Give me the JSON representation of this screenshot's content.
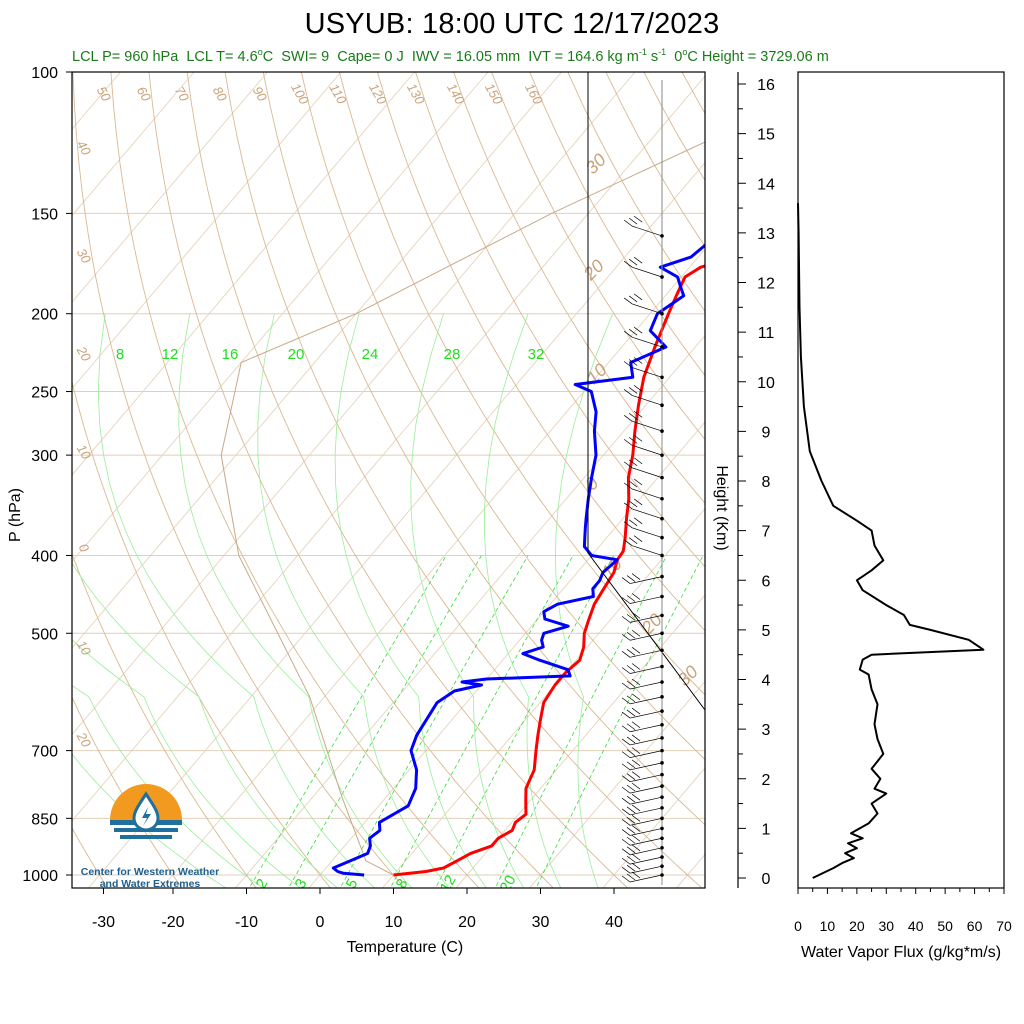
{
  "title": "USYUB: 18:00 UTC 12/17/2023",
  "subtitle": {
    "lcl_p": "LCL P= 960 hPa",
    "lcl_t_prefix": "LCL T= 4.6",
    "lcl_t_unit": "C",
    "swi": "SWI= 9",
    "cape": "Cape= 0 J",
    "iwv": "IWV = 16.05 mm",
    "ivt_prefix": "IVT = 164.6 kg m",
    "ivt_exp1": "-1",
    "ivt_mid": " s",
    "ivt_exp2": "-1",
    "zero_height_prefix": "0",
    "zero_height": "C Height = 3729.06 m"
  },
  "logo": {
    "line1": "Center for Western Weather",
    "line2": "and Water Extremes",
    "orange": "#f29a20",
    "blue": "#1f6f9f"
  },
  "colors": {
    "temperature": "#ff0000",
    "dewpoint": "#0000ff",
    "dry_adiabat": "#c9a37a",
    "mixing_ratio": "#22dd22",
    "flux": "#000000"
  },
  "chart_data": [
    {
      "type": "line",
      "name": "skew-t",
      "xlabel": "Temperature (C)",
      "ylabel": "P (hPa)",
      "xlim": [
        -34,
        52
      ],
      "x_ticks": [
        "-30",
        "-20",
        "-10",
        "0",
        "10",
        "20",
        "30",
        "40"
      ],
      "pressure_ticks": [
        "100",
        "150",
        "200",
        "250",
        "300",
        "400",
        "500",
        "700",
        "850",
        "1000"
      ],
      "y_scale": "log-pressure, reversed",
      "ylim": [
        1050,
        100
      ],
      "mixing_ratio_labels_top": [
        "8",
        "12",
        "16",
        "20",
        "24",
        "28",
        "32"
      ],
      "mixing_ratio_labels_bottom": [
        "2",
        "3",
        "5",
        "8",
        "12",
        "20"
      ],
      "dry_adiabat_labels": [
        "50",
        "60",
        "70",
        "80",
        "90",
        "100",
        "110",
        "120",
        "130",
        "140",
        "150",
        "160"
      ],
      "dry_adiabat_labels_left": [
        "40",
        "30",
        "20",
        "10",
        "0",
        "10",
        "20"
      ],
      "moist_labels_right": [
        "30",
        "20",
        "10",
        "0",
        "10",
        "20",
        "30"
      ],
      "series": [
        {
          "name": "temperature",
          "points": [
            [
              1000,
              10
            ],
            [
              995,
              12
            ],
            [
              990,
              14
            ],
            [
              980,
              16
            ],
            [
              960,
              17
            ],
            [
              940,
              18
            ],
            [
              920,
              20
            ],
            [
              900,
              20
            ],
            [
              880,
              21
            ],
            [
              860,
              20.5
            ],
            [
              840,
              21
            ],
            [
              820,
              20
            ],
            [
              800,
              19
            ],
            [
              780,
              18
            ],
            [
              760,
              17.5
            ],
            [
              740,
              17
            ],
            [
              700,
              15
            ],
            [
              670,
              13.5
            ],
            [
              640,
              12
            ],
            [
              610,
              10.5
            ],
            [
              580,
              10
            ],
            [
              560,
              10
            ],
            [
              540,
              10.5
            ],
            [
              520,
              9.5
            ],
            [
              500,
              8
            ],
            [
              480,
              7
            ],
            [
              460,
              6
            ],
            [
              440,
              5.5
            ],
            [
              420,
              5
            ],
            [
              405,
              4
            ],
            [
              395,
              3.8
            ],
            [
              380,
              2.5
            ],
            [
              360,
              0.5
            ],
            [
              340,
              -1.5
            ],
            [
              320,
              -4
            ],
            [
              300,
              -6
            ],
            [
              280,
              -8.5
            ],
            [
              260,
              -11
            ],
            [
              240,
              -13.5
            ],
            [
              220,
              -15.5
            ],
            [
              200,
              -17.5
            ],
            [
              190,
              -18.5
            ],
            [
              180,
              -19.5
            ],
            [
              175,
              -18.5
            ],
            [
              170,
              -15
            ],
            [
              165,
              -10.5
            ],
            [
              160,
              -3
            ],
            [
              155,
              -1.5
            ],
            [
              150,
              1
            ]
          ]
        },
        {
          "name": "dewpoint",
          "points": [
            [
              1000,
              6
            ],
            [
              995,
              3
            ],
            [
              990,
              2
            ],
            [
              980,
              1
            ],
            [
              960,
              2.5
            ],
            [
              940,
              4
            ],
            [
              920,
              3.5
            ],
            [
              900,
              2.5
            ],
            [
              880,
              3
            ],
            [
              860,
              2
            ],
            [
              840,
              3
            ],
            [
              820,
              4
            ],
            [
              800,
              3.5
            ],
            [
              780,
              3
            ],
            [
              760,
              2
            ],
            [
              740,
              1
            ],
            [
              700,
              -2
            ],
            [
              670,
              -3
            ],
            [
              640,
              -3.5
            ],
            [
              610,
              -4
            ],
            [
              590,
              -3
            ],
            [
              580,
              0
            ],
            [
              575,
              -3
            ],
            [
              570,
              0
            ],
            [
              565,
              11
            ],
            [
              555,
              10
            ],
            [
              540,
              5
            ],
            [
              530,
              2
            ],
            [
              520,
              4
            ],
            [
              510,
              3
            ],
            [
              500,
              2.5
            ],
            [
              490,
              5
            ],
            [
              480,
              1
            ],
            [
              470,
              0
            ],
            [
              460,
              1
            ],
            [
              450,
              5
            ],
            [
              440,
              4
            ],
            [
              430,
              4
            ],
            [
              420,
              3.5
            ],
            [
              405,
              4
            ],
            [
              400,
              0
            ],
            [
              390,
              -2
            ],
            [
              380,
              -3
            ],
            [
              370,
              -4
            ],
            [
              360,
              -5
            ],
            [
              340,
              -7
            ],
            [
              320,
              -9
            ],
            [
              300,
              -11
            ],
            [
              280,
              -14
            ],
            [
              265,
              -16
            ],
            [
              250,
              -19
            ],
            [
              245,
              -22
            ],
            [
              240,
              -15
            ],
            [
              230,
              -17
            ],
            [
              220,
              -14
            ],
            [
              210,
              -18
            ],
            [
              200,
              -19
            ],
            [
              190,
              -17.5
            ],
            [
              185,
              -19
            ],
            [
              180,
              -20.5
            ],
            [
              175,
              -24
            ],
            [
              170,
              -21
            ],
            [
              160,
              -20
            ],
            [
              155,
              -18
            ],
            [
              150,
              -18
            ]
          ]
        }
      ]
    },
    {
      "type": "line",
      "name": "water-vapor-flux",
      "xlabel": "Water Vapor Flux (g/kg*m/s)",
      "ylabel": "Height (Km)",
      "xlim": [
        0,
        70
      ],
      "ylim": [
        -0.2,
        16.3
      ],
      "x_ticks": [
        "0",
        "10",
        "20",
        "30",
        "40",
        "50",
        "60",
        "70"
      ],
      "y_ticks": [
        "0",
        "1",
        "2",
        "3",
        "4",
        "5",
        "6",
        "7",
        "8",
        "9",
        "10",
        "11",
        "12",
        "13",
        "14",
        "15",
        "16"
      ],
      "points": [
        [
          5,
          0
        ],
        [
          12,
          0.2
        ],
        [
          15,
          0.3
        ],
        [
          19,
          0.4
        ],
        [
          16,
          0.5
        ],
        [
          20,
          0.6
        ],
        [
          17,
          0.7
        ],
        [
          22,
          0.8
        ],
        [
          18,
          0.9
        ],
        [
          24,
          1.1
        ],
        [
          27,
          1.3
        ],
        [
          25,
          1.5
        ],
        [
          30,
          1.7
        ],
        [
          26,
          1.8
        ],
        [
          28,
          2.0
        ],
        [
          25,
          2.2
        ],
        [
          29,
          2.5
        ],
        [
          27,
          2.8
        ],
        [
          26,
          3.1
        ],
        [
          27,
          3.5
        ],
        [
          25,
          3.8
        ],
        [
          24,
          4.1
        ],
        [
          21,
          4.2
        ],
        [
          22,
          4.4
        ],
        [
          25,
          4.5
        ],
        [
          63,
          4.6
        ],
        [
          58,
          4.8
        ],
        [
          45,
          5.0
        ],
        [
          38,
          5.1
        ],
        [
          36,
          5.3
        ],
        [
          30,
          5.5
        ],
        [
          22,
          5.8
        ],
        [
          20,
          6.0
        ],
        [
          25,
          6.2
        ],
        [
          29,
          6.4
        ],
        [
          26,
          6.7
        ],
        [
          25,
          7.0
        ],
        [
          20,
          7.2
        ],
        [
          12,
          7.5
        ],
        [
          8,
          8.0
        ],
        [
          4,
          8.6
        ],
        [
          2,
          9.5
        ],
        [
          1,
          10.5
        ],
        [
          0.5,
          11.5
        ],
        [
          0.3,
          12.5
        ],
        [
          0.2,
          13.0
        ],
        [
          0,
          13.6
        ]
      ]
    }
  ]
}
